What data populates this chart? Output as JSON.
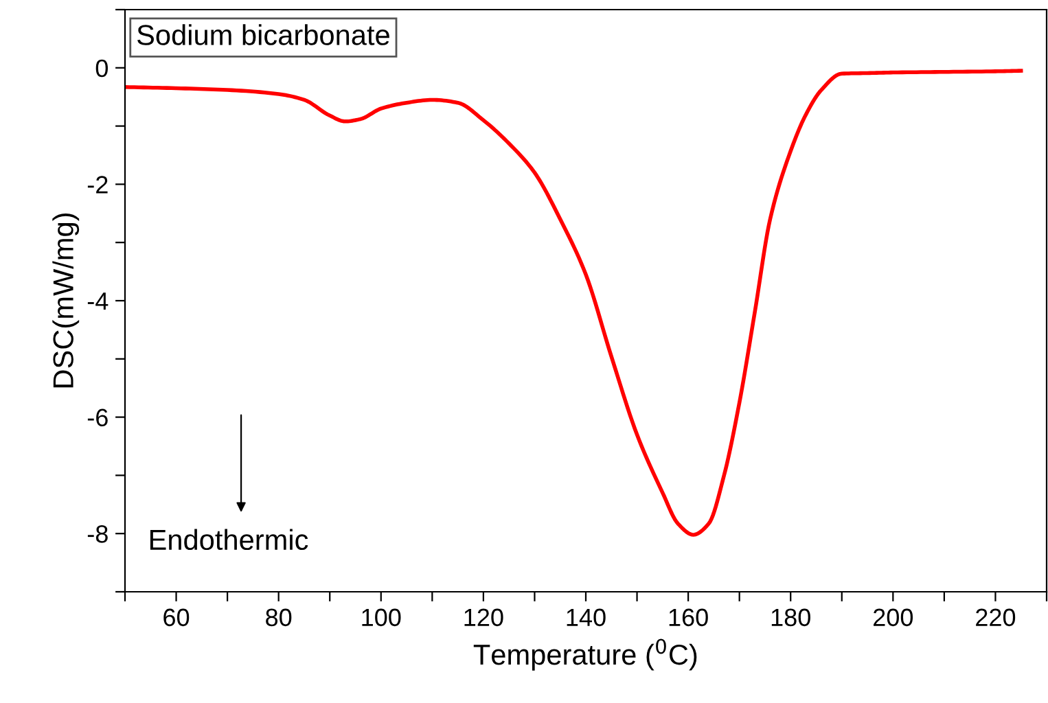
{
  "chart_data": {
    "type": "line",
    "title": "Sodium bicarbonate",
    "xlabel": "Temperature ($^{0}$C)",
    "ylabel": "DSC(mW/mg)",
    "annotations": [
      "Endothermic"
    ],
    "x": [
      50,
      60,
      70,
      80,
      85,
      90,
      93,
      96,
      100,
      105,
      110,
      115,
      120,
      125,
      130,
      135,
      140,
      145,
      150,
      155,
      158,
      161,
      164,
      167,
      170,
      173,
      176,
      180,
      183,
      186,
      190,
      195,
      200,
      210,
      220,
      225
    ],
    "series": [
      {
        "color": "#ff0000",
        "values": [
          -0.33,
          -0.35,
          -0.38,
          -0.45,
          -0.55,
          -0.82,
          -0.92,
          -0.88,
          -0.7,
          -0.6,
          -0.55,
          -0.6,
          -0.9,
          -1.3,
          -1.8,
          -2.6,
          -3.55,
          -4.96,
          -6.3,
          -7.3,
          -7.83,
          -8.02,
          -7.83,
          -7.0,
          -5.75,
          -4.2,
          -2.6,
          -1.43,
          -0.8,
          -0.38,
          -0.1,
          -0.09,
          -0.08,
          -0.07,
          -0.06,
          -0.05
        ]
      }
    ],
    "xlim": [
      50,
      230
    ],
    "xticks": [
      {
        "value": 50,
        "label": null
      },
      60,
      {
        "value": 70,
        "label": null
      },
      80,
      {
        "value": 90,
        "label": null
      },
      100,
      {
        "value": 110,
        "label": null
      },
      120,
      {
        "value": 130,
        "label": null
      },
      140,
      {
        "value": 150,
        "label": null
      },
      160,
      {
        "value": 170,
        "label": null
      },
      180,
      {
        "value": 190,
        "label": null
      },
      200,
      {
        "value": 210,
        "label": null
      },
      220,
      {
        "value": 230,
        "label": null
      }
    ],
    "ylim": [
      -9,
      1
    ],
    "yticks": [
      {
        "value": -9,
        "label": null
      },
      -8,
      {
        "value": -7,
        "label": null
      },
      -6,
      {
        "value": -5,
        "label": null
      },
      -4,
      {
        "value": -3,
        "label": null
      },
      -2,
      {
        "value": -1,
        "label": null
      },
      0,
      {
        "value": 1,
        "label": null
      }
    ],
    "grid": false,
    "marker": "none",
    "line_style": "solid"
  }
}
